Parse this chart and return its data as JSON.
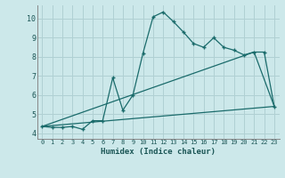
{
  "xlabel": "Humidex (Indice chaleur)",
  "bg_color": "#cce8ea",
  "grid_color": "#b0d0d3",
  "line_color": "#1a6b6b",
  "xlim": [
    -0.5,
    23.5
  ],
  "ylim": [
    3.7,
    10.7
  ],
  "xticks": [
    0,
    1,
    2,
    3,
    4,
    5,
    6,
    7,
    8,
    9,
    10,
    11,
    12,
    13,
    14,
    15,
    16,
    17,
    18,
    19,
    20,
    21,
    22,
    23
  ],
  "yticks": [
    4,
    5,
    6,
    7,
    8,
    9,
    10
  ],
  "line1_x": [
    0,
    1,
    2,
    3,
    4,
    5,
    6,
    7,
    8,
    9,
    10,
    11,
    12,
    13,
    14,
    15,
    16,
    17,
    18,
    19,
    20,
    21,
    22,
    23
  ],
  "line1_y": [
    4.35,
    4.3,
    4.3,
    4.35,
    4.2,
    4.65,
    4.65,
    6.9,
    5.2,
    6.0,
    8.2,
    10.1,
    10.35,
    9.85,
    9.3,
    8.7,
    8.5,
    9.0,
    8.5,
    8.35,
    8.1,
    8.25,
    8.25,
    5.4
  ],
  "line2_x": [
    0,
    21,
    23
  ],
  "line2_y": [
    4.35,
    8.25,
    5.4
  ],
  "line3_x": [
    0,
    23
  ],
  "line3_y": [
    4.35,
    5.4
  ]
}
